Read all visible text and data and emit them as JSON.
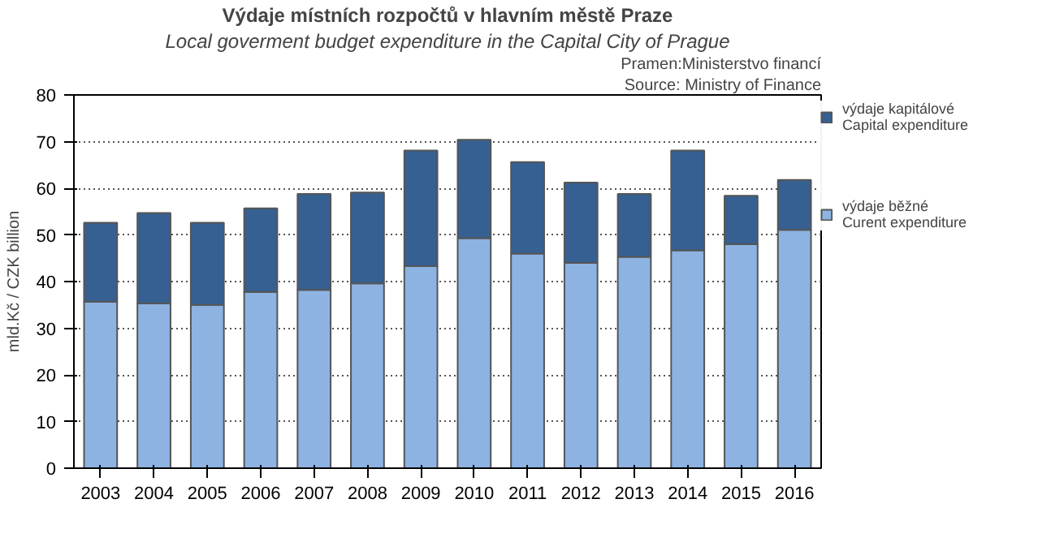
{
  "chart_data": {
    "type": "bar",
    "stacked": true,
    "title": "Výdaje místních rozpočtů v hlavním městě Praze",
    "subtitle": "Local goverment budget expenditure in the Capital City of Prague",
    "annotations": [
      "Pramen:Ministerstvo financí",
      "Source: Ministry of Finance"
    ],
    "ylabel": "mld.Kč / CZK billion",
    "categories": [
      "2003",
      "2004",
      "2005",
      "2006",
      "2007",
      "2008",
      "2009",
      "2010",
      "2011",
      "2012",
      "2013",
      "2014",
      "2015",
      "2016"
    ],
    "series": [
      {
        "name": "výdaje běžné\nCurent expenditure",
        "color": "#8db3e2",
        "values": [
          35.7,
          35.3,
          35.0,
          37.8,
          38.2,
          39.6,
          43.3,
          49.3,
          46.0,
          44.0,
          45.3,
          46.7,
          48.0,
          51.1
        ]
      },
      {
        "name": "výdaje kapitálové\nCapital expenditure",
        "color": "#366092",
        "values": [
          16.9,
          19.4,
          17.6,
          17.9,
          20.6,
          19.5,
          24.8,
          21.1,
          19.6,
          17.2,
          13.5,
          21.4,
          10.4,
          10.7
        ]
      }
    ],
    "ylim": [
      0,
      80
    ],
    "yticks": [
      0,
      10,
      20,
      30,
      40,
      50,
      60,
      70,
      80
    ],
    "grid": "y",
    "legend": "right"
  }
}
